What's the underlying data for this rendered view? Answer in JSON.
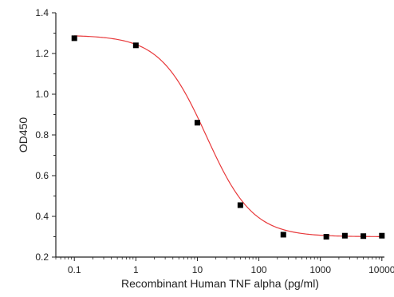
{
  "chart_data": {
    "type": "scatter",
    "title": "",
    "xlabel": "Recombinant Human TNF alpha (pg/ml)",
    "ylabel": "OD450",
    "x_scale": "log",
    "xlim": [
      0.05,
      11000
    ],
    "ylim": [
      0.2,
      1.4
    ],
    "x_ticks": [
      0.1,
      1,
      10,
      100,
      1000,
      10000
    ],
    "x_tick_labels": [
      "0.1",
      "1",
      "10",
      "100",
      "1000",
      "10000"
    ],
    "y_ticks": [
      0.2,
      0.4,
      0.6,
      0.8,
      1.0,
      1.2,
      1.4
    ],
    "y_tick_labels": [
      "0.2",
      "0.4",
      "0.6",
      "0.8",
      "1.0",
      "1.2",
      "1.4"
    ],
    "grid": false,
    "legend": "none",
    "series": [
      {
        "kind": "points",
        "marker": "square",
        "color": "#000000",
        "x": [
          0.1,
          1,
          10,
          50,
          250,
          1250,
          2500,
          5000,
          10000
        ],
        "y": [
          1.275,
          1.24,
          0.86,
          0.455,
          0.31,
          0.3,
          0.305,
          0.303,
          0.305
        ]
      },
      {
        "kind": "fit",
        "model": "4PL",
        "color": "#e8393b",
        "params": {
          "top": 1.29,
          "bottom": 0.3,
          "ec50": 14,
          "hill": 1.15
        },
        "x_range": [
          0.1,
          10000
        ]
      }
    ]
  }
}
